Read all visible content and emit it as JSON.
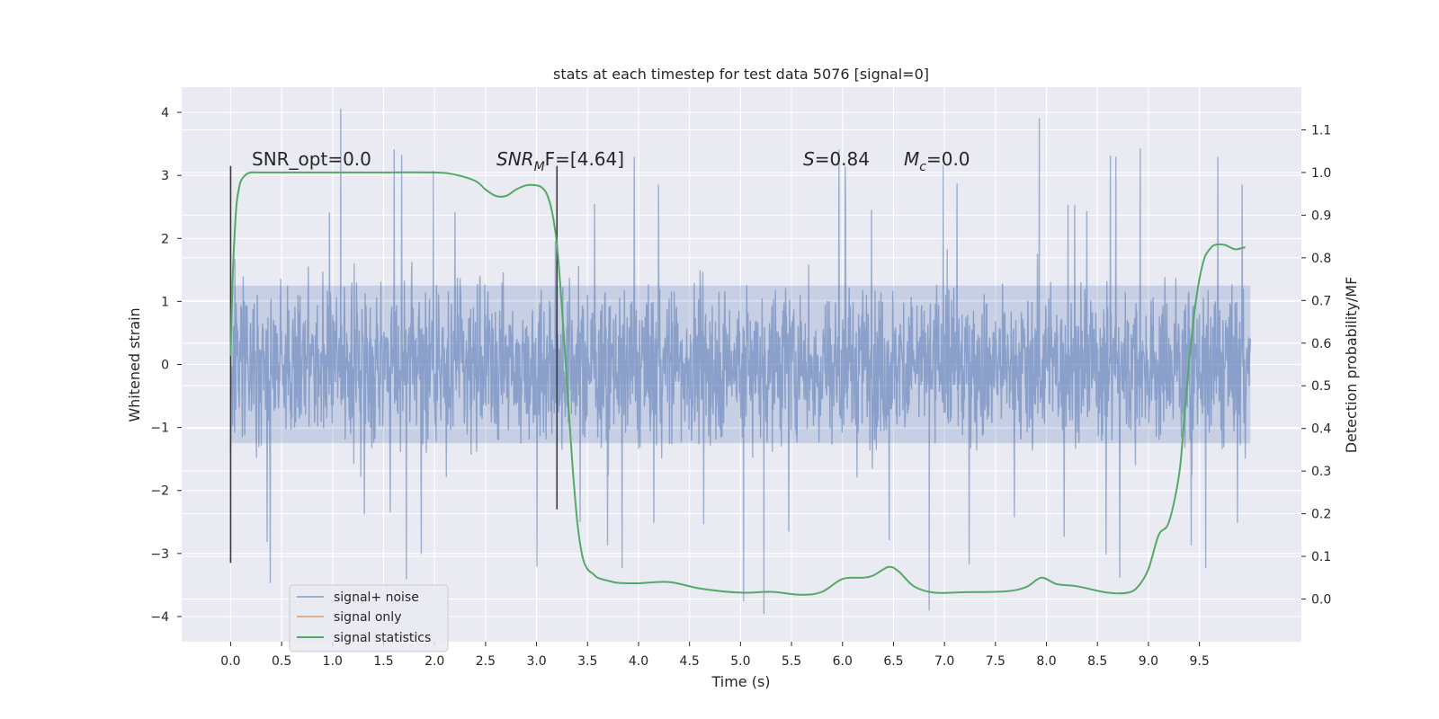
{
  "chart_data": {
    "type": "line",
    "title": "stats at each timestep for test data 5076 [signal=0]",
    "xlabel": "Time (s)",
    "ylabel": "Whitened strain",
    "y2label": "Detection probability/MF",
    "xlim": [
      -0.48,
      10.5
    ],
    "ylim": [
      -4.4,
      4.4
    ],
    "y2lim": [
      -0.1,
      1.2
    ],
    "xticks": [
      0.0,
      0.5,
      1.0,
      1.5,
      2.0,
      2.5,
      3.0,
      3.5,
      4.0,
      4.5,
      5.0,
      5.5,
      6.0,
      6.5,
      7.0,
      7.5,
      8.0,
      8.5,
      9.0,
      9.5
    ],
    "xtick_labels": [
      "0.0",
      "0.5",
      "1.0",
      "1.5",
      "2.0",
      "2.5",
      "3.0",
      "3.5",
      "4.0",
      "4.5",
      "5.0",
      "5.5",
      "6.0",
      "6.5",
      "7.0",
      "7.5",
      "8.0",
      "8.5",
      "9.0",
      "9.5"
    ],
    "yticks": [
      -4,
      -3,
      -2,
      -1,
      0,
      1,
      2,
      3,
      4
    ],
    "ytick_labels": [
      "−4",
      "−3",
      "−2",
      "−1",
      "0",
      "1",
      "2",
      "3",
      "4"
    ],
    "y2ticks": [
      0.0,
      0.1,
      0.2,
      0.3,
      0.4,
      0.5,
      0.6,
      0.7,
      0.8,
      0.9,
      1.0,
      1.1
    ],
    "y2tick_labels": [
      "0.0",
      "0.1",
      "0.2",
      "0.3",
      "0.4",
      "0.5",
      "0.6",
      "0.7",
      "0.8",
      "0.9",
      "1.0",
      "1.1"
    ],
    "grid": true,
    "legend_position": "lower-left",
    "series": [
      {
        "name": "signal+ noise",
        "axis": "left",
        "color": "#4c72b0",
        "description": "dense noise band, core amplitude about ±1.3 with spikes up to about ±3.5",
        "x_range": [
          0.0,
          10.0
        ],
        "notable_peaks": [
          {
            "x": 1.08,
            "y": 4.05
          },
          {
            "x": 7.93,
            "y": 3.9
          },
          {
            "x": 5.23,
            "y": -3.95
          },
          {
            "x": 5.03,
            "y": -3.75
          },
          {
            "x": 6.85,
            "y": -3.9
          }
        ]
      },
      {
        "name": "signal only",
        "axis": "left",
        "color": "#dd8452",
        "values": []
      },
      {
        "name": "signal statistics",
        "axis": "right",
        "color": "#55a868",
        "x": [
          0.0,
          0.02,
          0.04,
          0.06,
          0.08,
          0.1,
          0.15,
          0.2,
          0.3,
          0.5,
          1.0,
          1.5,
          2.0,
          2.2,
          2.4,
          2.5,
          2.6,
          2.7,
          2.8,
          2.9,
          3.0,
          3.05,
          3.1,
          3.15,
          3.2,
          3.25,
          3.3,
          3.35,
          3.4,
          3.45,
          3.5,
          3.55,
          3.6,
          3.7,
          3.8,
          4.0,
          4.3,
          4.6,
          5.0,
          5.3,
          5.6,
          5.8,
          6.0,
          6.2,
          6.3,
          6.45,
          6.55,
          6.7,
          6.9,
          7.2,
          7.6,
          7.8,
          7.95,
          8.1,
          8.3,
          8.6,
          8.8,
          8.9,
          9.0,
          9.1,
          9.2,
          9.3,
          9.35,
          9.4,
          9.45,
          9.5,
          9.55,
          9.6,
          9.65,
          9.75,
          9.85,
          9.95
        ],
        "values": [
          0.57,
          0.75,
          0.86,
          0.93,
          0.96,
          0.98,
          0.995,
          1.0,
          1.0,
          1.0,
          1.0,
          1.0,
          1.0,
          0.995,
          0.98,
          0.96,
          0.945,
          0.945,
          0.96,
          0.97,
          0.97,
          0.965,
          0.95,
          0.91,
          0.83,
          0.68,
          0.5,
          0.32,
          0.18,
          0.1,
          0.07,
          0.06,
          0.05,
          0.043,
          0.038,
          0.037,
          0.04,
          0.025,
          0.015,
          0.017,
          0.01,
          0.017,
          0.047,
          0.05,
          0.055,
          0.075,
          0.065,
          0.03,
          0.015,
          0.016,
          0.018,
          0.028,
          0.05,
          0.035,
          0.03,
          0.015,
          0.015,
          0.03,
          0.07,
          0.15,
          0.18,
          0.29,
          0.42,
          0.56,
          0.67,
          0.75,
          0.8,
          0.82,
          0.83,
          0.83,
          0.82,
          0.825
        ]
      }
    ],
    "vertical_markers": [
      {
        "x": 0.0,
        "ymin": -3.15,
        "ymax": 3.15
      },
      {
        "x": 3.2,
        "ymin": -2.3,
        "ymax": 3.15
      }
    ],
    "annotations": [
      {
        "text": "SNR_opt=0.0",
        "italic": false
      },
      {
        "text": "SNR",
        "sub": "M",
        "tail": "F=[4.64]",
        "italic_head": true
      },
      {
        "text": "S",
        "tail": "=0.84",
        "italic_head": true
      },
      {
        "text": "M",
        "sub": "c",
        "tail": "=0.0",
        "italic_head": true
      }
    ],
    "colors": {
      "background": "#eaeaf2",
      "grid": "#ffffff",
      "noise": "#4c72b0",
      "signal_only": "#dd8452",
      "statistics": "#55a868",
      "marker": "#3a3a3a"
    }
  }
}
